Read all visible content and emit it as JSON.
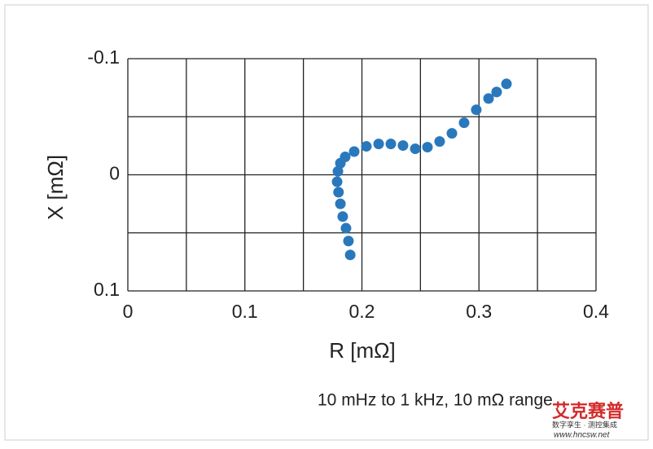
{
  "chart_data": {
    "type": "scatter",
    "x_label": "R [mΩ]",
    "y_label": "X [mΩ]",
    "annotation": "10 mHz to 1 kHz, 10 mΩ range",
    "x": [
      0.19,
      0.1885,
      0.1864,
      0.1836,
      0.1816,
      0.18,
      0.1788,
      0.1795,
      0.1816,
      0.1857,
      0.1934,
      0.2038,
      0.2143,
      0.2247,
      0.2351,
      0.2456,
      0.256,
      0.2664,
      0.2769,
      0.2873,
      0.2977,
      0.3082,
      0.3151,
      0.3235
    ],
    "values": [
      0.069,
      0.057,
      0.046,
      0.036,
      0.025,
      0.015,
      0.006,
      -0.003,
      -0.01,
      -0.0154,
      -0.02,
      -0.0245,
      -0.0266,
      -0.0266,
      -0.0252,
      -0.0224,
      -0.0238,
      -0.0287,
      -0.0357,
      -0.0448,
      -0.056,
      -0.0657,
      -0.0713,
      -0.0783
    ],
    "color": "#2a78bc",
    "xlim": [
      0,
      0.4
    ],
    "xticks": [
      0,
      0.1,
      0.2,
      0.3,
      0.4
    ],
    "ylim": [
      -0.1,
      0.1
    ],
    "yticks": [
      -0.1,
      0,
      0.1
    ],
    "y_inverted": true,
    "grid": true,
    "minor_grid": true
  },
  "watermark": {
    "brand": "艾克赛普",
    "tagline": "数字孪生 · 测控集成",
    "url": "www.hncsw.net"
  }
}
